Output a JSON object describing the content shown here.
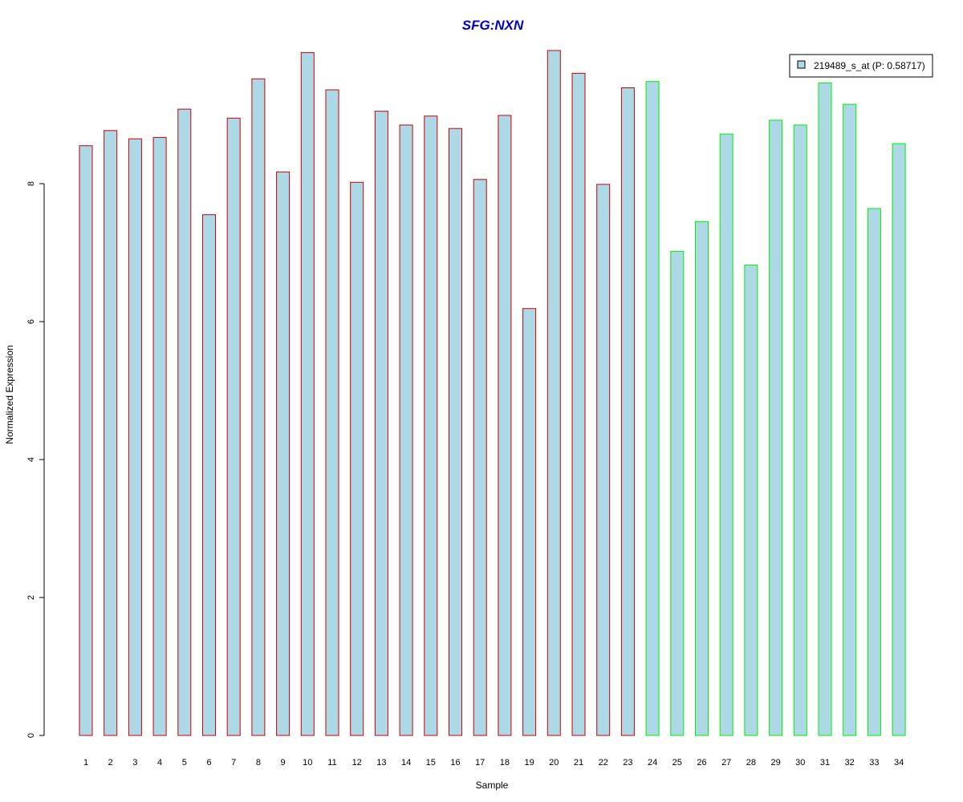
{
  "chart_data": {
    "type": "bar",
    "title": "SFG:NXN",
    "xlabel": "Sample",
    "ylabel": "Normalized Expression",
    "ylim": [
      0,
      10
    ],
    "yticks": [
      0,
      2,
      4,
      6,
      8
    ],
    "grid": false,
    "legend": {
      "position": "top-right",
      "entries": [
        "219489_s_at (P: 0.58717)"
      ]
    },
    "colors": {
      "bar_fill": "#add8e6",
      "group1_border": "#cc0000",
      "group2_border": "#00ee00",
      "title": "#0000cc"
    },
    "categories": [
      "1",
      "2",
      "3",
      "4",
      "5",
      "6",
      "7",
      "8",
      "9",
      "10",
      "11",
      "12",
      "13",
      "14",
      "15",
      "16",
      "17",
      "18",
      "19",
      "20",
      "21",
      "22",
      "23",
      "24",
      "25",
      "26",
      "27",
      "28",
      "29",
      "30",
      "31",
      "32",
      "33",
      "34"
    ],
    "series": [
      {
        "name": "219489_s_at (P: 0.58717)",
        "values": [
          8.55,
          8.77,
          8.65,
          8.67,
          9.08,
          7.55,
          8.95,
          9.52,
          8.17,
          9.9,
          9.36,
          8.02,
          9.05,
          8.85,
          8.98,
          8.8,
          8.06,
          8.99,
          6.19,
          9.93,
          9.6,
          7.99,
          9.39,
          9.48,
          7.02,
          7.45,
          8.72,
          6.82,
          8.92,
          8.85,
          9.46,
          9.15,
          7.64,
          8.58
        ],
        "groups": [
          1,
          1,
          1,
          1,
          1,
          1,
          1,
          1,
          1,
          1,
          1,
          1,
          1,
          1,
          1,
          1,
          1,
          1,
          1,
          1,
          1,
          1,
          1,
          2,
          2,
          2,
          2,
          2,
          2,
          2,
          2,
          2,
          2,
          2
        ]
      }
    ]
  }
}
